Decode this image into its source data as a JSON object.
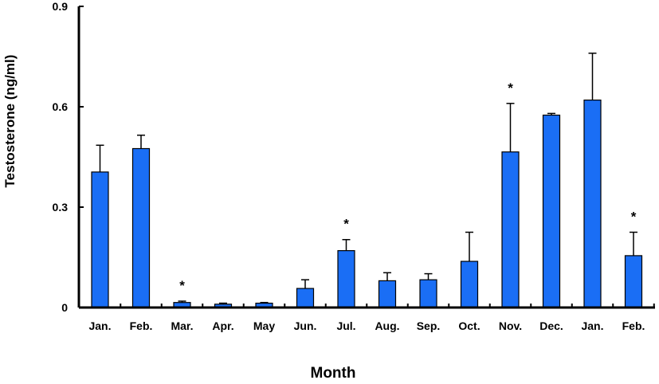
{
  "chart_data": {
    "type": "bar",
    "title": "",
    "xlabel": "Month",
    "ylabel": "Testosterone (ng/ml)",
    "ylim": [
      0,
      0.9
    ],
    "yticks": [
      "0",
      "0.3",
      "0.6",
      "0.9"
    ],
    "ytick_values": [
      0,
      0.3,
      0.6,
      0.9
    ],
    "categories": [
      "Jan.",
      "Feb.",
      "Mar.",
      "Apr.",
      "May",
      "Jun.",
      "Jul.",
      "Aug.",
      "Sep.",
      "Oct.",
      "Nov.",
      "Dec.",
      "Jan.",
      "Feb."
    ],
    "values": [
      0.405,
      0.475,
      0.015,
      0.01,
      0.013,
      0.057,
      0.17,
      0.08,
      0.083,
      0.138,
      0.465,
      0.575,
      0.62,
      0.155
    ],
    "error_upper": [
      0.08,
      0.04,
      0.004,
      0.003,
      0.002,
      0.026,
      0.033,
      0.024,
      0.018,
      0.087,
      0.145,
      0.005,
      0.14,
      0.07
    ],
    "significance_markers": [
      "",
      "",
      "*",
      "",
      "",
      "",
      "*",
      "",
      "",
      "",
      "*",
      "",
      "",
      "*"
    ],
    "bar_color": "#1a6ef5",
    "grid": false,
    "legend": "none"
  }
}
